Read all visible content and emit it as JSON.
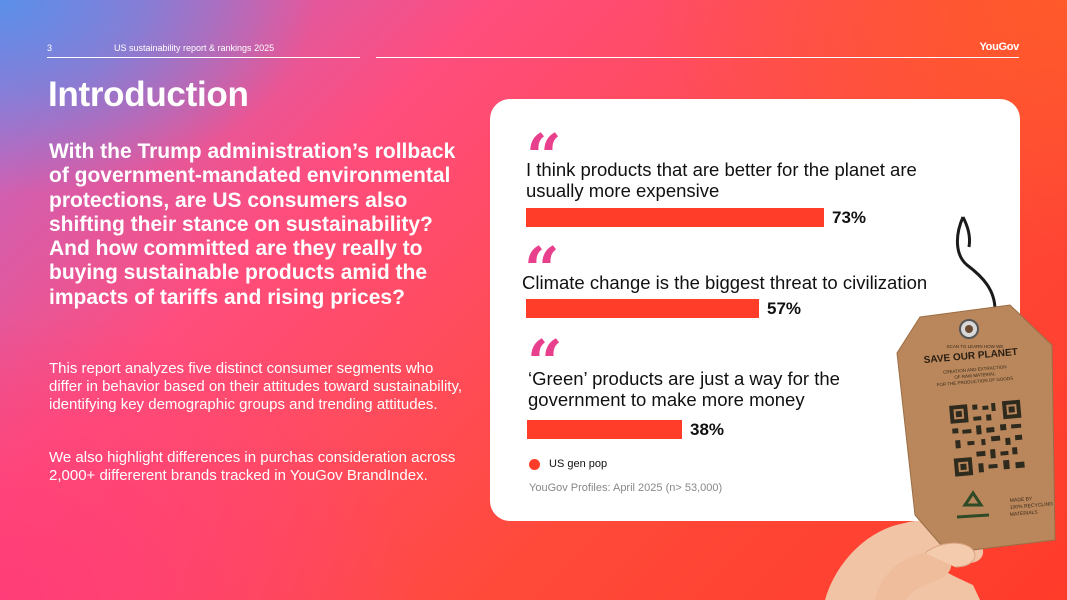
{
  "header": {
    "page_number": "3",
    "report_title": "US sustainability report & rankings 2025",
    "logo": "YouGov"
  },
  "intro": {
    "title": "Introduction",
    "lead": "With the Trump administration’s rollback of government-mandated environmental protections, are US consumers also shifting their stance on sustainability? And how committed are they really to buying sustainable products amid the impacts of tariffs and rising prices?",
    "paragraph_1": "This report analyzes five distinct consumer segments who differ in behavior based on their attitudes toward sustainability, identifying key demographic groups and trending attitudes.",
    "paragraph_2": "We also highlight differences in purchas consideration across 2,000+ differerent brands tracked in YouGov BrandIndex."
  },
  "card": {
    "quote_icon": "quote-icon",
    "legend_label": "US gen pop",
    "source": "YouGov Profiles: April 2025 (n> 53,000)"
  },
  "chart_data": {
    "type": "bar",
    "orientation": "horizontal",
    "categories": [
      "I think products that are better for the planet are usually more expensive",
      "Climate change is the biggest threat to civilization",
      "‘Green’ products are just a way for the government to make more money"
    ],
    "series": [
      {
        "name": "US gen pop",
        "values": [
          73,
          57,
          38
        ],
        "color": "#ff3d28"
      }
    ],
    "value_labels": [
      "73%",
      "57%",
      "38%"
    ],
    "xlim": [
      0,
      100
    ],
    "legend": "bottom-left"
  },
  "tag": {
    "scan_text": "SCAN TO LEARN HOW WE",
    "headline": "SAVE OUR PLANET",
    "sub_1": "CREATION AND EXTRACTION",
    "sub_2": "OF RAW MATERIAL",
    "sub_3": "FOR THE PRODUCTION OF GOODS",
    "made_1": "MADE BY",
    "made_2": "100% RECYCLING",
    "made_3": "MATERIALS"
  },
  "colors": {
    "accent": "#ff3d28",
    "quote": "#e8408c",
    "card": "#ffffff"
  }
}
